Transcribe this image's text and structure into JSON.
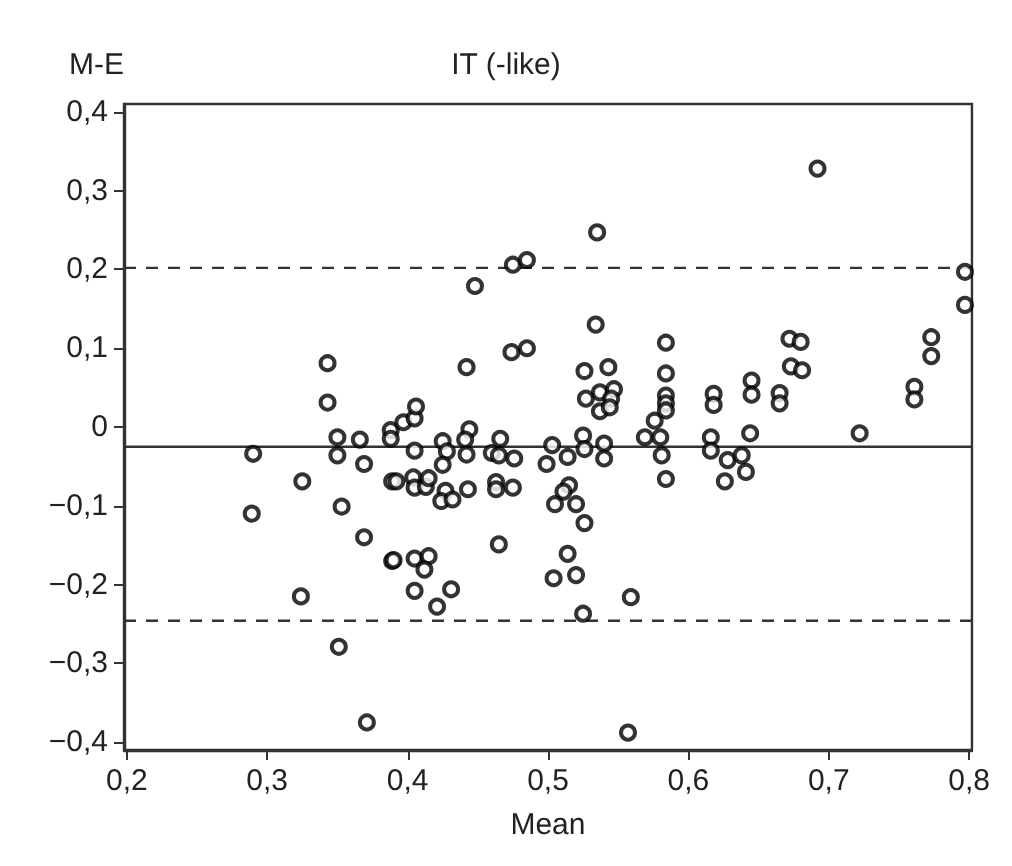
{
  "chart_data": {
    "type": "scatter",
    "title": "IT (-like)",
    "xlabel": "Mean",
    "ylabel": "M-E",
    "x": [
      0.29,
      0.289,
      0.325,
      0.324,
      0.343,
      0.343,
      0.35,
      0.35,
      0.353,
      0.351,
      0.366,
      0.369,
      0.369,
      0.371,
      0.388,
      0.389,
      0.389,
      0.388,
      0.397,
      0.405,
      0.406,
      0.405,
      0.392,
      0.404,
      0.405,
      0.413,
      0.415,
      0.425,
      0.428,
      0.425,
      0.427,
      0.424,
      0.432,
      0.39,
      0.405,
      0.415,
      0.412,
      0.405,
      0.421,
      0.431,
      0.442,
      0.444,
      0.441,
      0.442,
      0.443,
      0.448,
      0.46,
      0.465,
      0.466,
      0.476,
      0.463,
      0.463,
      0.475,
      0.465,
      0.475,
      0.485,
      0.474,
      0.485,
      0.503,
      0.499,
      0.514,
      0.515,
      0.511,
      0.505,
      0.52,
      0.526,
      0.514,
      0.504,
      0.52,
      0.525,
      0.535,
      0.534,
      0.526,
      0.527,
      0.537,
      0.537,
      0.543,
      0.547,
      0.545,
      0.544,
      0.525,
      0.526,
      0.54,
      0.54,
      0.559,
      0.557,
      0.569,
      0.576,
      0.58,
      0.581,
      0.584,
      0.584,
      0.584,
      0.584,
      0.584,
      0.584,
      0.616,
      0.616,
      0.618,
      0.618,
      0.628,
      0.626,
      0.638,
      0.641,
      0.644,
      0.645,
      0.645,
      0.665,
      0.665,
      0.672,
      0.68,
      0.673,
      0.681,
      0.692,
      0.722,
      0.761,
      0.761,
      0.773,
      0.773,
      0.797,
      0.797
    ],
    "values": [
      -0.034,
      -0.11,
      -0.069,
      -0.215,
      0.081,
      0.031,
      -0.013,
      -0.036,
      -0.101,
      -0.279,
      -0.016,
      -0.047,
      -0.14,
      -0.375,
      -0.004,
      -0.069,
      -0.17,
      -0.015,
      0.006,
      0.011,
      0.026,
      -0.03,
      -0.069,
      -0.064,
      -0.077,
      -0.076,
      -0.065,
      -0.018,
      -0.031,
      -0.048,
      -0.081,
      -0.094,
      -0.092,
      -0.169,
      -0.167,
      -0.164,
      -0.181,
      -0.208,
      -0.228,
      -0.206,
      0.076,
      -0.003,
      -0.016,
      -0.035,
      -0.079,
      0.179,
      -0.033,
      -0.036,
      -0.015,
      -0.04,
      -0.07,
      -0.079,
      -0.077,
      -0.149,
      0.206,
      0.212,
      0.095,
      0.1,
      -0.023,
      -0.047,
      -0.038,
      -0.074,
      -0.082,
      -0.098,
      -0.098,
      -0.122,
      -0.161,
      -0.192,
      -0.188,
      -0.237,
      0.247,
      0.13,
      0.071,
      0.036,
      0.044,
      0.02,
      0.076,
      0.048,
      0.036,
      0.025,
      -0.011,
      -0.028,
      -0.021,
      -0.04,
      -0.216,
      -0.388,
      -0.013,
      0.008,
      -0.013,
      -0.036,
      -0.066,
      0.107,
      0.068,
      0.04,
      0.03,
      0.021,
      -0.013,
      -0.03,
      0.042,
      0.028,
      -0.042,
      -0.069,
      -0.036,
      -0.057,
      -0.008,
      0.059,
      0.041,
      0.043,
      0.03,
      0.112,
      0.108,
      0.077,
      0.072,
      0.328,
      -0.008,
      0.051,
      0.035,
      0.114,
      0.09,
      0.197,
      0.155
    ],
    "color": "#000000",
    "marker": "circle",
    "grid": false,
    "xlim": [
      0.198,
      0.802
    ],
    "ylim": [
      -0.41,
      0.41
    ],
    "xticks": [
      {
        "value": 0.2,
        "label": "0,2"
      },
      {
        "value": 0.3,
        "label": "0,3"
      },
      {
        "value": 0.4,
        "label": "0,4"
      },
      {
        "value": 0.5,
        "label": "0,5"
      },
      {
        "value": 0.6,
        "label": "0,6"
      },
      {
        "value": 0.7,
        "label": "0,7"
      },
      {
        "value": 0.8,
        "label": "0,8"
      }
    ],
    "yticks": [
      {
        "value": -0.4,
        "label": "−0,4"
      },
      {
        "value": -0.3,
        "label": "−0,3"
      },
      {
        "value": -0.2,
        "label": "−0,2"
      },
      {
        "value": -0.1,
        "label": "−0,1"
      },
      0,
      {
        "value": 0.1,
        "label": "0,1"
      },
      {
        "value": 0.2,
        "label": "0,2"
      },
      {
        "value": 0.3,
        "label": "0,3"
      },
      {
        "value": 0.4,
        "label": "0,4"
      }
    ],
    "ref_lines": [
      {
        "axis": "y",
        "value": 0.202,
        "line_style": "dashed",
        "color": "#333333"
      },
      {
        "axis": "y",
        "value": -0.025,
        "line_style": "solid",
        "color": "#333333"
      },
      {
        "axis": "y",
        "value": -0.246,
        "line_style": "dashed",
        "color": "#333333"
      }
    ]
  }
}
